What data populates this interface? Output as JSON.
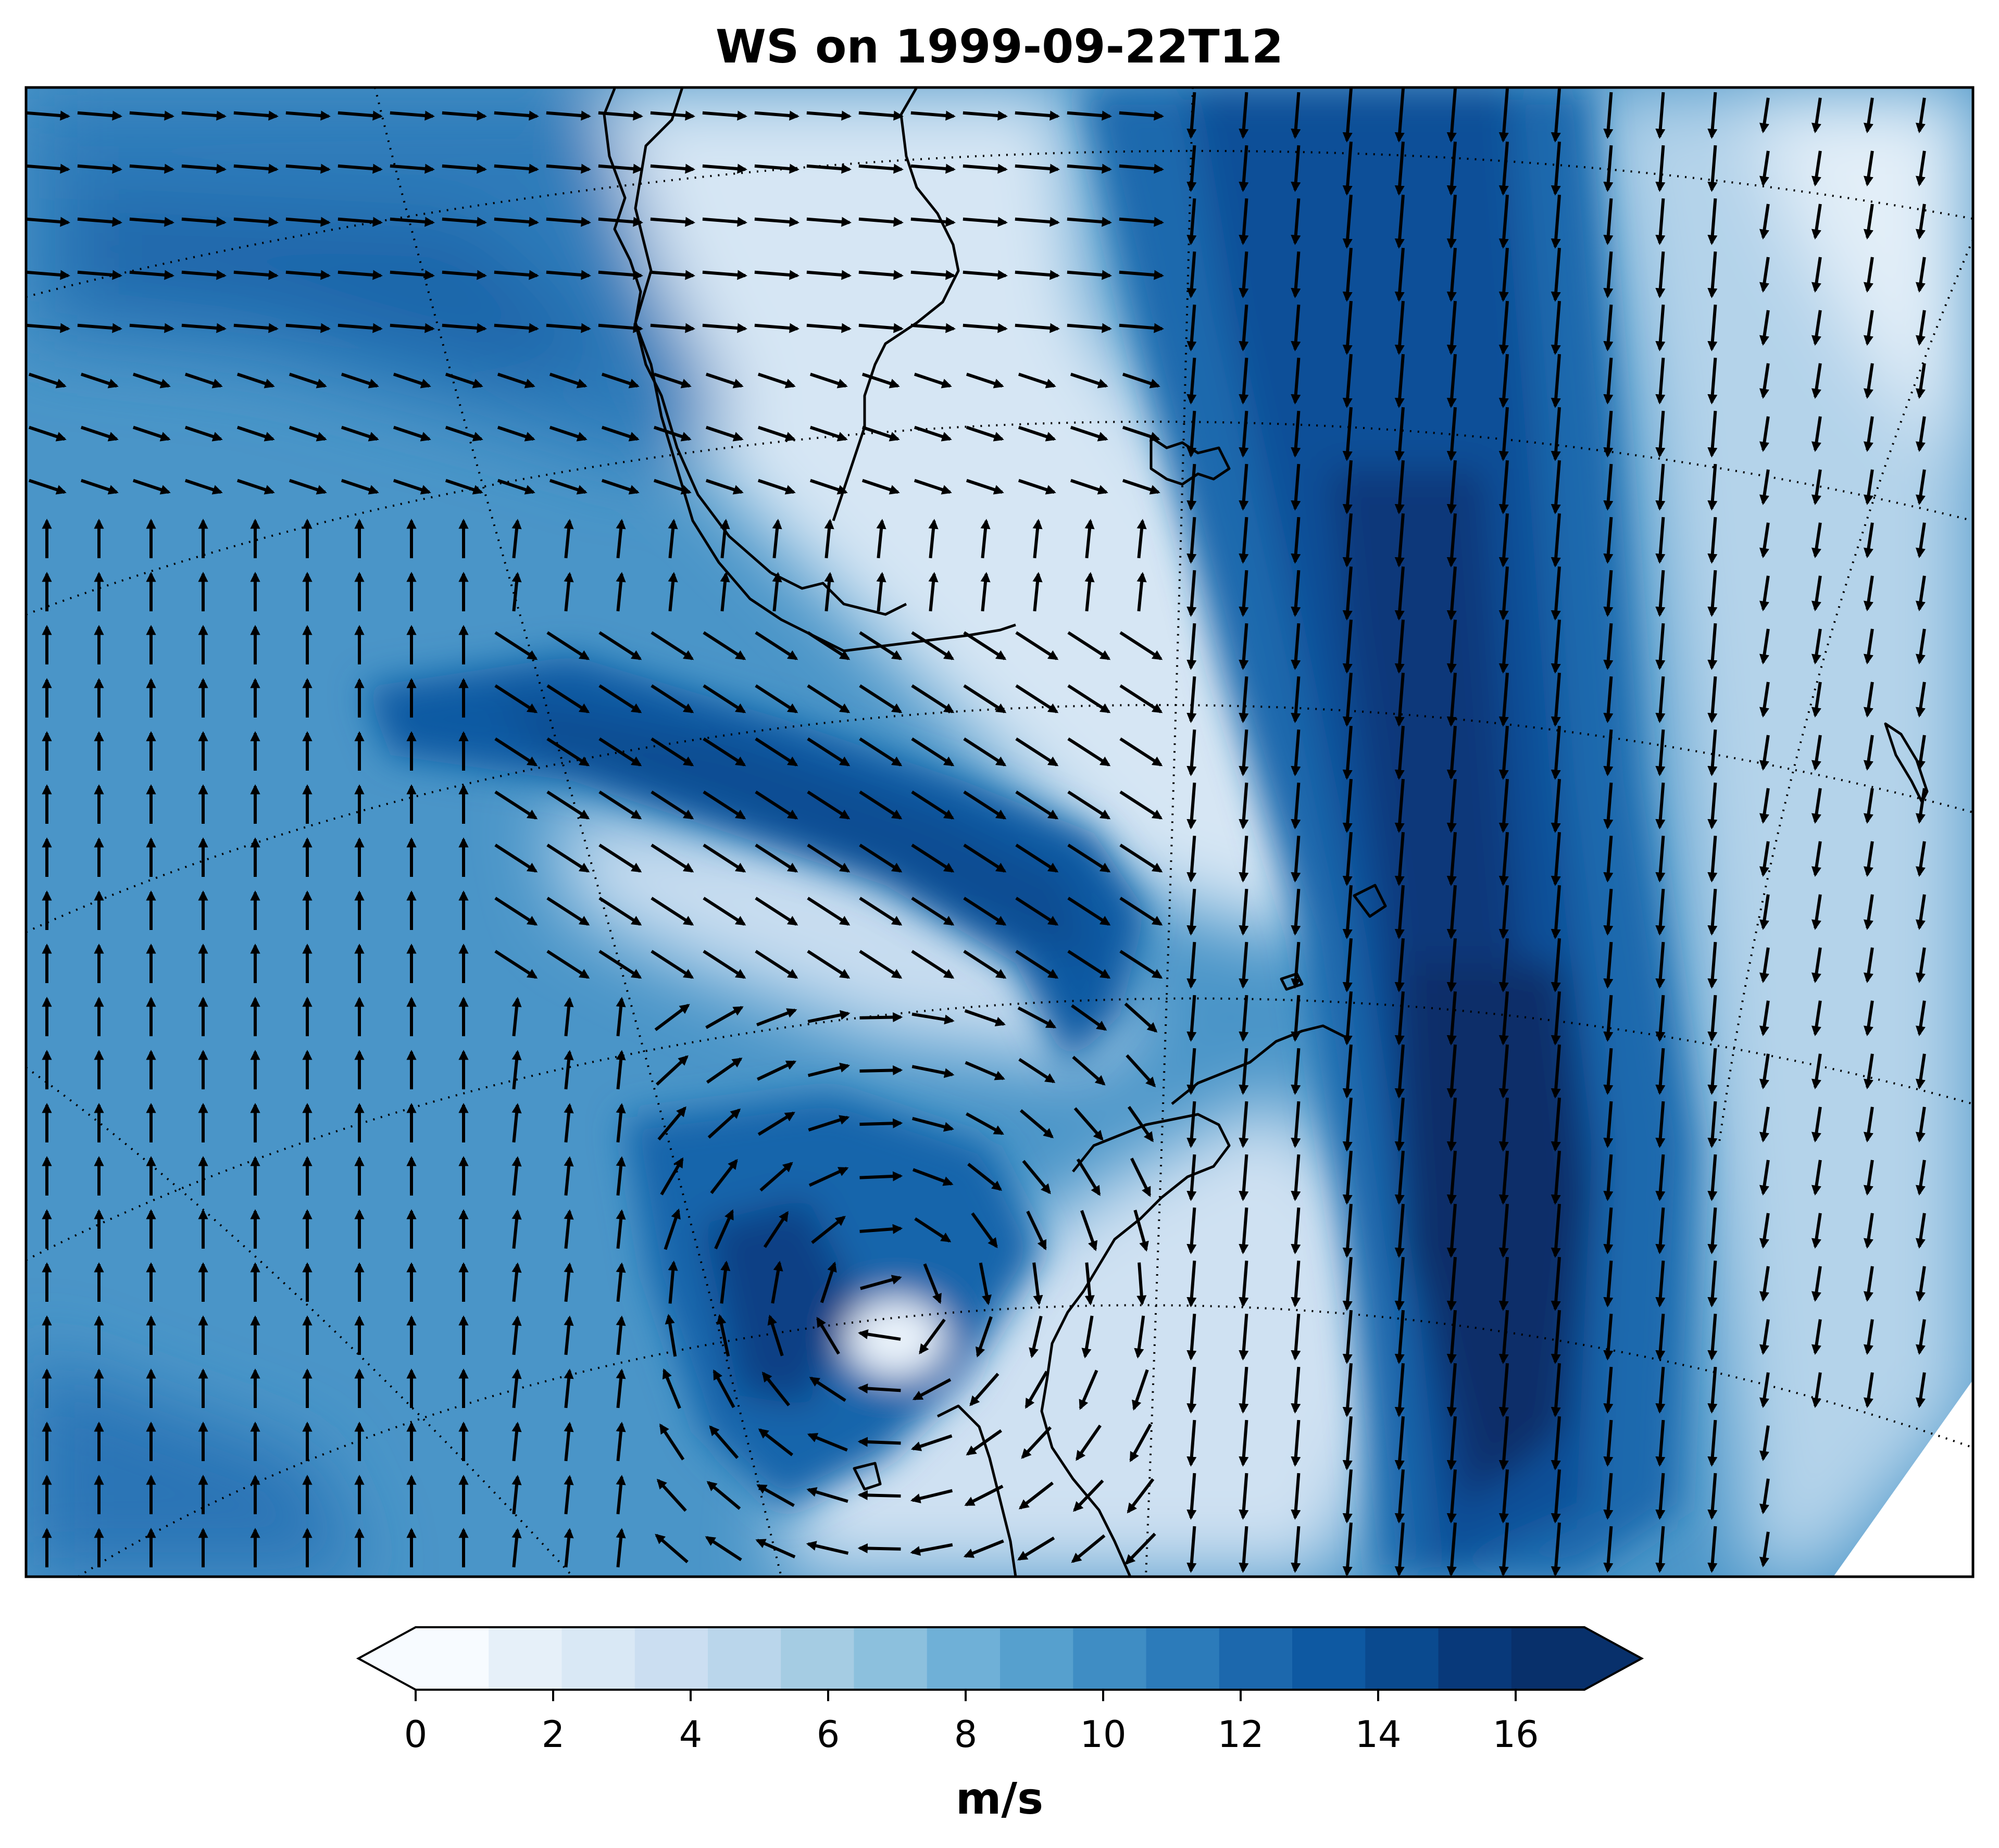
{
  "title": "WS on 1999-09-22T12",
  "colorbar": {
    "unit_label": "m/s",
    "tick_labels": [
      "0",
      "2",
      "4",
      "6",
      "8",
      "10",
      "12",
      "14",
      "16"
    ],
    "range": [
      0,
      17
    ],
    "step": 1,
    "extend": "both",
    "colors": [
      "#f7fbff",
      "#e6f0f9",
      "#d9e8f5",
      "#cbdef1",
      "#bad6eb",
      "#a5cce3",
      "#8cc0dd",
      "#6fb0d7",
      "#56a0ce",
      "#3f8dc4",
      "#2c7bba",
      "#1c68ad",
      "#0e59a2",
      "#0a4a8f",
      "#08397a",
      "#08306b"
    ],
    "under_color": "#f7fbff",
    "over_color": "#08306b"
  },
  "map": {
    "region": "Drake Passage, South Shetland Islands and northern Antarctic Peninsula",
    "projection": "polar stereographic",
    "field": "wind speed (filled contours) with wind vectors",
    "graticule": "dotted"
  }
}
